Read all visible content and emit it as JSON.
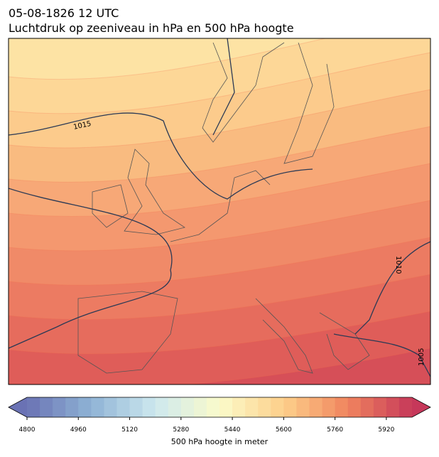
{
  "header": {
    "line1": "05-08-1826 12 UTC",
    "line2": "Luchtdruk op zeeniveau in hPa en 500 hPa hoogte"
  },
  "isobar_labels": [
    "1015",
    "1010",
    "1005"
  ],
  "colorbar": {
    "label": "500 hPa hoogte in meter",
    "lim": [
      4800,
      6000
    ],
    "step": 40,
    "ticks": [
      4800,
      4960,
      5120,
      5280,
      5440,
      5600,
      5760,
      5920
    ],
    "colors": [
      "#6a72b4",
      "#8fb3d5",
      "#cde8ef",
      "#fbfbca",
      "#fdcf8a",
      "#f0845e",
      "#c6385a"
    ]
  }
}
